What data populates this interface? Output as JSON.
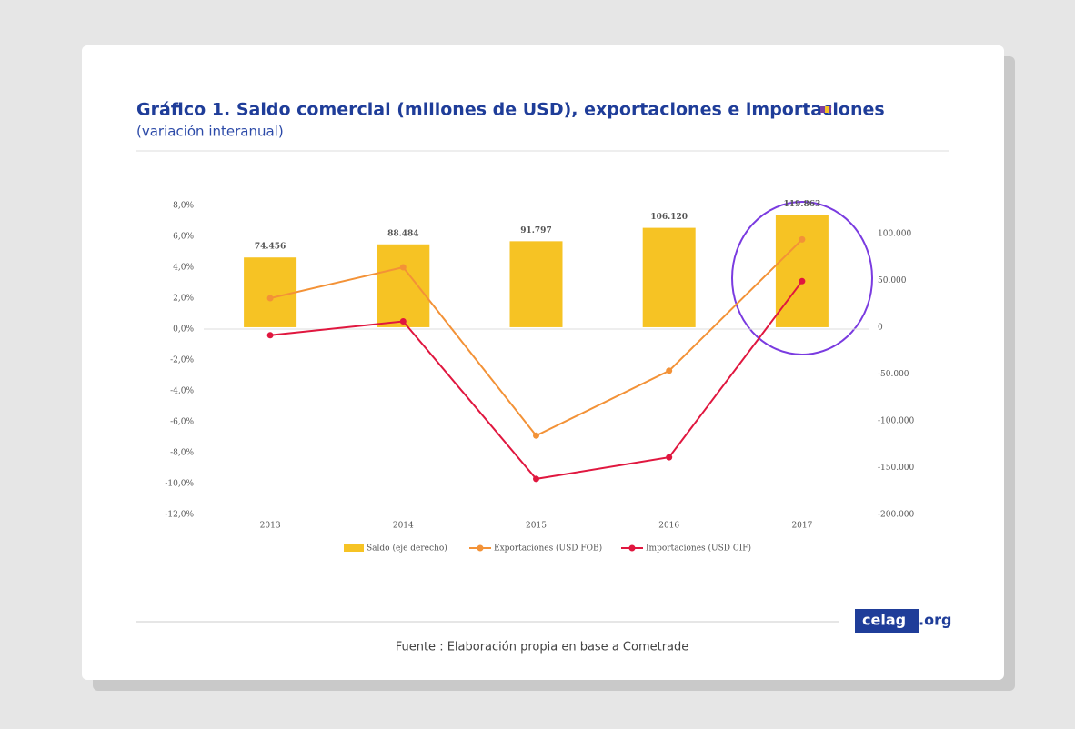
{
  "chart_data": {
    "type": "bar-line",
    "title": "Gráfico 1. Saldo comercial (millones de USD), exportaciones e importaciones",
    "subtitle": "(variación interanual)",
    "source": "Fuente : Elaboración propia en base a Cometrade",
    "brand": [
      "celag",
      ".org"
    ],
    "categories": [
      "2013",
      "2014",
      "2015",
      "2016",
      "2017"
    ],
    "series": [
      {
        "name": "Saldo (eje derecho)",
        "type": "bar",
        "axis": "y2",
        "color": "#f6c324",
        "values": [
          74456,
          88484,
          91797,
          106120,
          119863
        ],
        "value_labels": [
          "74.456",
          "88.484",
          "91.797",
          "106.120",
          "119.863"
        ]
      },
      {
        "name": "Exportaciones (USD FOB)",
        "type": "line",
        "color": "#f39237",
        "values": [
          2.0,
          4.0,
          -6.9,
          -2.7,
          5.8
        ]
      },
      {
        "name": "Importaciones (USD CIF)",
        "type": "line",
        "color": "#e0173f",
        "values": [
          -0.4,
          0.5,
          -9.7,
          -8.3,
          3.1
        ]
      }
    ],
    "ylim": [
      -12,
      8
    ],
    "yticks": [
      {
        "value": 8,
        "label": "8,0%"
      },
      {
        "value": 6,
        "label": "6,0%"
      },
      {
        "value": 4,
        "label": "4,0%"
      },
      {
        "value": 2,
        "label": "2,0%"
      },
      {
        "value": 0,
        "label": "0,0%"
      },
      {
        "value": -2,
        "label": "-2,0%"
      },
      {
        "value": -4,
        "label": "-4,0%"
      },
      {
        "value": -6,
        "label": "-6,0%"
      },
      {
        "value": -8,
        "label": "-8,0%"
      },
      {
        "value": -10,
        "label": "-10,0%"
      },
      {
        "value": -12,
        "label": "-12,0%"
      }
    ],
    "y2lim": [
      -200000,
      130000
    ],
    "y2ticks": [
      {
        "value": 100000,
        "label": "100.000"
      },
      {
        "value": 50000,
        "label": "50.000"
      },
      0,
      {
        "value": -50000,
        "label": "-50.000"
      },
      {
        "value": -100000,
        "label": "-100.000"
      },
      {
        "value": -150000,
        "label": "-150.000"
      },
      {
        "value": -200000,
        "label": "-200.000"
      }
    ],
    "legend": "bottom"
  }
}
